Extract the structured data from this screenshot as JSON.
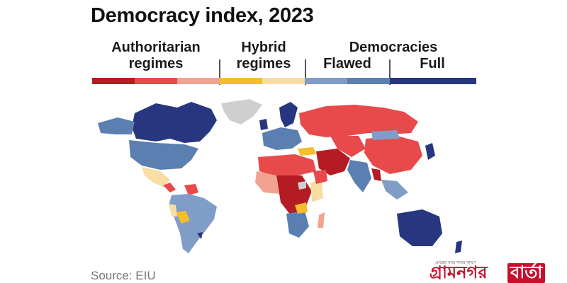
{
  "title": "Democracy index, 2023",
  "legend": {
    "groups": [
      {
        "label_line1": "Authoritarian",
        "label_line2": "regimes"
      },
      {
        "label_line1": "Hybrid",
        "label_line2": "regimes"
      },
      {
        "label_line1": "Democracies",
        "label_line2": ""
      }
    ],
    "sub_labels": {
      "flawed": "Flawed",
      "full": "Full"
    },
    "colors": [
      "#b51b22",
      "#e8494a",
      "#f2a390",
      "#f5bd2c",
      "#f8dda4",
      "#7f9dc7",
      "#5a7fb0",
      "#27367f"
    ]
  },
  "map": {
    "no_data_color": "#cfcfcf",
    "ocean_color": "#ffffff"
  },
  "source": "Source: EIU",
  "logo": {
    "tagline": "প্রান্তের খবর সবার আগে",
    "part1": "গ্রামনগর",
    "part2": "বার্তা"
  }
}
